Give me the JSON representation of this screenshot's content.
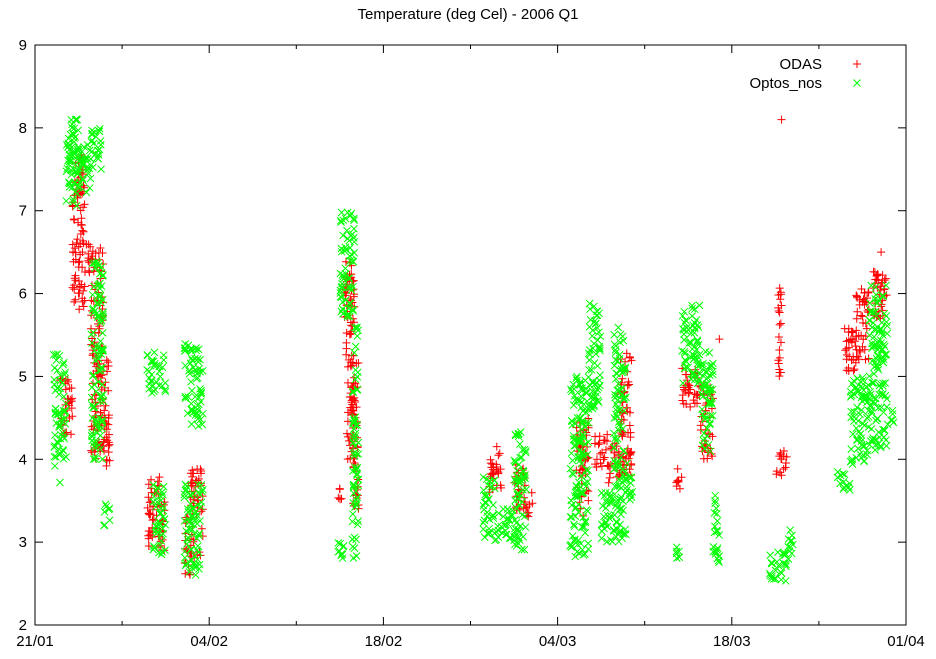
{
  "chart_data": {
    "type": "scatter",
    "title": "Temperature (deg Cel) - 2006 Q1",
    "xlabel": "",
    "ylabel": "",
    "x_axis": {
      "type": "date",
      "range": [
        "2006-01-21",
        "2006-04-01"
      ],
      "tick_labels": [
        "21/01",
        "04/02",
        "18/02",
        "04/03",
        "18/03",
        "01/04"
      ],
      "tick_dates": [
        "2006-01-21",
        "2006-02-04",
        "2006-02-18",
        "2006-03-04",
        "2006-03-18",
        "2006-04-01"
      ],
      "minor_tick_dates": [
        "2006-01-28",
        "2006-02-11",
        "2006-02-25",
        "2006-03-11",
        "2006-03-25"
      ]
    },
    "ylim": [
      2,
      9
    ],
    "yticks": [
      2,
      3,
      4,
      5,
      6,
      7,
      8,
      9
    ],
    "grid": false,
    "legend_position": "top-right",
    "series": [
      {
        "name": "ODAS",
        "color": "#ff0000",
        "marker": "plus",
        "clusters": [
          {
            "start": "2006-01-23 00:00",
            "end": "2006-01-24 00:00",
            "ymin": 4.2,
            "ymax": 5.0
          },
          {
            "start": "2006-01-24 00:00",
            "end": "2006-01-25 00:00",
            "ymin": 5.8,
            "ymax": 7.7
          },
          {
            "start": "2006-01-25 00:00",
            "end": "2006-01-25 12:00",
            "ymin": 6.2,
            "ymax": 6.6
          },
          {
            "start": "2006-01-25 12:00",
            "end": "2006-01-26 12:00",
            "ymin": 4.0,
            "ymax": 6.6
          },
          {
            "start": "2006-01-26 12:00",
            "end": "2006-01-27 00:00",
            "ymin": 3.9,
            "ymax": 5.2
          },
          {
            "start": "2006-01-30 00:00",
            "end": "2006-01-31 00:00",
            "ymin": 2.9,
            "ymax": 3.8
          },
          {
            "start": "2006-01-31 00:00",
            "end": "2006-01-31 12:00",
            "ymin": 2.9,
            "ymax": 3.5
          },
          {
            "start": "2006-02-02 00:00",
            "end": "2006-02-02 12:00",
            "ymin": 2.6,
            "ymax": 3.3
          },
          {
            "start": "2006-02-02 12:00",
            "end": "2006-02-03 12:00",
            "ymin": 2.8,
            "ymax": 3.9
          },
          {
            "start": "2006-02-14 08:00",
            "end": "2006-02-14 20:00",
            "ymin": 3.5,
            "ymax": 3.7
          },
          {
            "start": "2006-02-14 20:00",
            "end": "2006-02-15 12:00",
            "ymin": 5.7,
            "ymax": 6.4
          },
          {
            "start": "2006-02-15 00:00",
            "end": "2006-02-15 16:00",
            "ymin": 4.0,
            "ymax": 6.2
          },
          {
            "start": "2006-02-15 12:00",
            "end": "2006-02-16 00:00",
            "ymin": 3.3,
            "ymax": 5.2
          },
          {
            "start": "2006-02-26 12:00",
            "end": "2006-02-27 12:00",
            "ymin": 3.6,
            "ymax": 4.2
          },
          {
            "start": "2006-02-28 12:00",
            "end": "2006-03-01 12:00",
            "ymin": 3.3,
            "ymax": 4.0
          },
          {
            "start": "2006-03-01 12:00",
            "end": "2006-03-02 00:00",
            "ymin": 3.3,
            "ymax": 3.6
          },
          {
            "start": "2006-03-05 12:00",
            "end": "2006-03-06 12:00",
            "ymin": 3.3,
            "ymax": 4.5
          },
          {
            "start": "2006-03-07 00:00",
            "end": "2006-03-08 00:00",
            "ymin": 3.9,
            "ymax": 4.3
          },
          {
            "start": "2006-03-08 00:00",
            "end": "2006-03-09 00:00",
            "ymin": 3.7,
            "ymax": 4.2
          },
          {
            "start": "2006-03-09 00:00",
            "end": "2006-03-10 00:00",
            "ymin": 3.8,
            "ymax": 5.3
          },
          {
            "start": "2006-03-13 12:00",
            "end": "2006-03-14 00:00",
            "ymin": 3.6,
            "ymax": 3.9
          },
          {
            "start": "2006-03-14 00:00",
            "end": "2006-03-15 12:00",
            "ymin": 4.6,
            "ymax": 5.1
          },
          {
            "start": "2006-03-15 12:00",
            "end": "2006-03-16 12:00",
            "ymin": 4.0,
            "ymax": 4.9
          },
          {
            "start": "2006-03-21 12:00",
            "end": "2006-03-22 12:00",
            "ymin": 3.8,
            "ymax": 4.1
          },
          {
            "start": "2006-03-21 16:00",
            "end": "2006-03-22 00:00",
            "ymin": 5.0,
            "ymax": 6.1
          },
          {
            "start": "2006-03-27 00:00",
            "end": "2006-03-28 00:00",
            "ymin": 5.0,
            "ymax": 5.6
          },
          {
            "start": "2006-03-28 00:00",
            "end": "2006-03-29 00:00",
            "ymin": 5.2,
            "ymax": 6.1
          },
          {
            "start": "2006-03-29 00:00",
            "end": "2006-03-30 12:00",
            "ymin": 5.7,
            "ymax": 6.3
          }
        ],
        "points": [
          {
            "x": "2006-03-22 00:00",
            "y": 8.1
          },
          {
            "x": "2006-03-30 00:00",
            "y": 6.5
          },
          {
            "x": "2006-03-17 00:00",
            "y": 5.45
          }
        ]
      },
      {
        "name": "Optos_nos",
        "color": "#00ff00",
        "marker": "cross",
        "clusters": [
          {
            "start": "2006-01-22 12:00",
            "end": "2006-01-23 12:00",
            "ymin": 3.9,
            "ymax": 5.3
          },
          {
            "start": "2006-01-23 12:00",
            "end": "2006-01-24 12:00",
            "ymin": 7.0,
            "ymax": 8.2
          },
          {
            "start": "2006-01-24 00:00",
            "end": "2006-01-25 12:00",
            "ymin": 7.2,
            "ymax": 7.8
          },
          {
            "start": "2006-01-25 12:00",
            "end": "2006-01-26 12:00",
            "ymin": 7.5,
            "ymax": 8.0
          },
          {
            "start": "2006-01-25 12:00",
            "end": "2006-01-26 12:00",
            "ymin": 4.0,
            "ymax": 6.4
          },
          {
            "start": "2006-01-26 12:00",
            "end": "2006-01-27 00:00",
            "ymin": 3.2,
            "ymax": 3.5
          },
          {
            "start": "2006-01-30 00:00",
            "end": "2006-01-31 12:00",
            "ymin": 4.8,
            "ymax": 5.3
          },
          {
            "start": "2006-01-30 12:00",
            "end": "2006-01-31 12:00",
            "ymin": 2.8,
            "ymax": 3.7
          },
          {
            "start": "2006-02-02 00:00",
            "end": "2006-02-03 12:00",
            "ymin": 4.4,
            "ymax": 5.4
          },
          {
            "start": "2006-02-02 00:00",
            "end": "2006-02-03 12:00",
            "ymin": 2.6,
            "ymax": 3.7
          },
          {
            "start": "2006-02-14 08:00",
            "end": "2006-02-14 20:00",
            "ymin": 2.75,
            "ymax": 3.1
          },
          {
            "start": "2006-02-14 12:00",
            "end": "2006-02-15 16:00",
            "ymin": 5.7,
            "ymax": 7.0
          },
          {
            "start": "2006-02-15 12:00",
            "end": "2006-02-16 00:00",
            "ymin": 2.8,
            "ymax": 5.6
          },
          {
            "start": "2006-02-26 00:00",
            "end": "2006-02-27 00:00",
            "ymin": 3.0,
            "ymax": 3.8
          },
          {
            "start": "2006-02-27 00:00",
            "end": "2006-02-28 12:00",
            "ymin": 3.0,
            "ymax": 3.4
          },
          {
            "start": "2006-02-28 12:00",
            "end": "2006-03-01 12:00",
            "ymin": 2.9,
            "ymax": 4.4
          },
          {
            "start": "2006-03-05 00:00",
            "end": "2006-03-06 12:00",
            "ymin": 2.8,
            "ymax": 5.0
          },
          {
            "start": "2006-03-06 12:00",
            "end": "2006-03-07 12:00",
            "ymin": 4.6,
            "ymax": 5.9
          },
          {
            "start": "2006-03-07 12:00",
            "end": "2006-03-08 12:00",
            "ymin": 3.0,
            "ymax": 3.6
          },
          {
            "start": "2006-03-08 12:00",
            "end": "2006-03-09 12:00",
            "ymin": 3.0,
            "ymax": 5.6
          },
          {
            "start": "2006-03-09 12:00",
            "end": "2006-03-10 00:00",
            "ymin": 3.5,
            "ymax": 4.0
          },
          {
            "start": "2006-03-13 12:00",
            "end": "2006-03-14 00:00",
            "ymin": 2.8,
            "ymax": 3.0
          },
          {
            "start": "2006-03-14 00:00",
            "end": "2006-03-15 12:00",
            "ymin": 4.9,
            "ymax": 5.9
          },
          {
            "start": "2006-03-15 12:00",
            "end": "2006-03-16 12:00",
            "ymin": 4.0,
            "ymax": 5.3
          },
          {
            "start": "2006-03-16 12:00",
            "end": "2006-03-17 00:00",
            "ymin": 2.7,
            "ymax": 3.6
          },
          {
            "start": "2006-03-21 00:00",
            "end": "2006-03-22 12:00",
            "ymin": 2.5,
            "ymax": 2.9
          },
          {
            "start": "2006-03-22 12:00",
            "end": "2006-03-23 00:00",
            "ymin": 2.7,
            "ymax": 3.15
          },
          {
            "start": "2006-03-26 12:00",
            "end": "2006-03-27 12:00",
            "ymin": 3.6,
            "ymax": 3.85
          },
          {
            "start": "2006-03-27 12:00",
            "end": "2006-03-29 00:00",
            "ymin": 3.9,
            "ymax": 5.0
          },
          {
            "start": "2006-03-29 00:00",
            "end": "2006-03-30 12:00",
            "ymin": 4.1,
            "ymax": 6.1
          },
          {
            "start": "2006-03-30 12:00",
            "end": "2006-03-31 00:00",
            "ymin": 4.4,
            "ymax": 4.6
          }
        ],
        "points": [
          {
            "x": "2006-01-23 00:00",
            "y": 3.72
          }
        ]
      }
    ]
  }
}
